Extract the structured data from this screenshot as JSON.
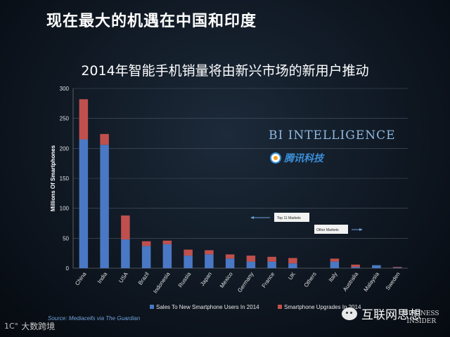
{
  "headline": "现在最大的机遇在中国和印度",
  "brand": {
    "bi_intelligence": "BI INTELLIGENCE",
    "tencent": "腾讯科技",
    "wechat_account": "互联网思想",
    "business_insider": [
      "BUSINESS",
      "INSIDER"
    ],
    "dashu": "大数跨境",
    "dashu_logo": "1C°"
  },
  "colors": {
    "new_users": "#4a78c4",
    "upgrades": "#c0504d"
  },
  "chart_data": {
    "type": "bar",
    "stacked": true,
    "title": "2014年智能手机销量将由新兴市场的新用户推动",
    "ylabel": "Millions Of Smartphones",
    "xlabel": "",
    "ylim": [
      0,
      300
    ],
    "yticks": [
      0,
      50,
      100,
      150,
      200,
      250,
      300
    ],
    "grid": true,
    "legend_position": "bottom",
    "categories": [
      "China",
      "India",
      "USA",
      "Brazil",
      "Indonesia",
      "Russia",
      "Japan",
      "Mexico",
      "Germany",
      "France",
      "UK",
      "Others",
      "Italy",
      "Australia",
      "Malaysia",
      "Sweden"
    ],
    "series": [
      {
        "name": "Sales To New Smartphone Users In 2014",
        "values": [
          215,
          206,
          48,
          37,
          40,
          21,
          23,
          16,
          11,
          11,
          8,
          0,
          11,
          2,
          5,
          1
        ]
      },
      {
        "name": "Smartphone Upgrades In 2014",
        "values": [
          67,
          18,
          40,
          8,
          6,
          10,
          7,
          7,
          10,
          8,
          9,
          0,
          5,
          4,
          0,
          1
        ]
      }
    ],
    "annotations": [
      {
        "text": "Top 11 Markets",
        "arrow": "left"
      },
      {
        "text": "Other Markets",
        "arrow": "right"
      }
    ],
    "source": "Source: Mediacells via The Guardian"
  }
}
